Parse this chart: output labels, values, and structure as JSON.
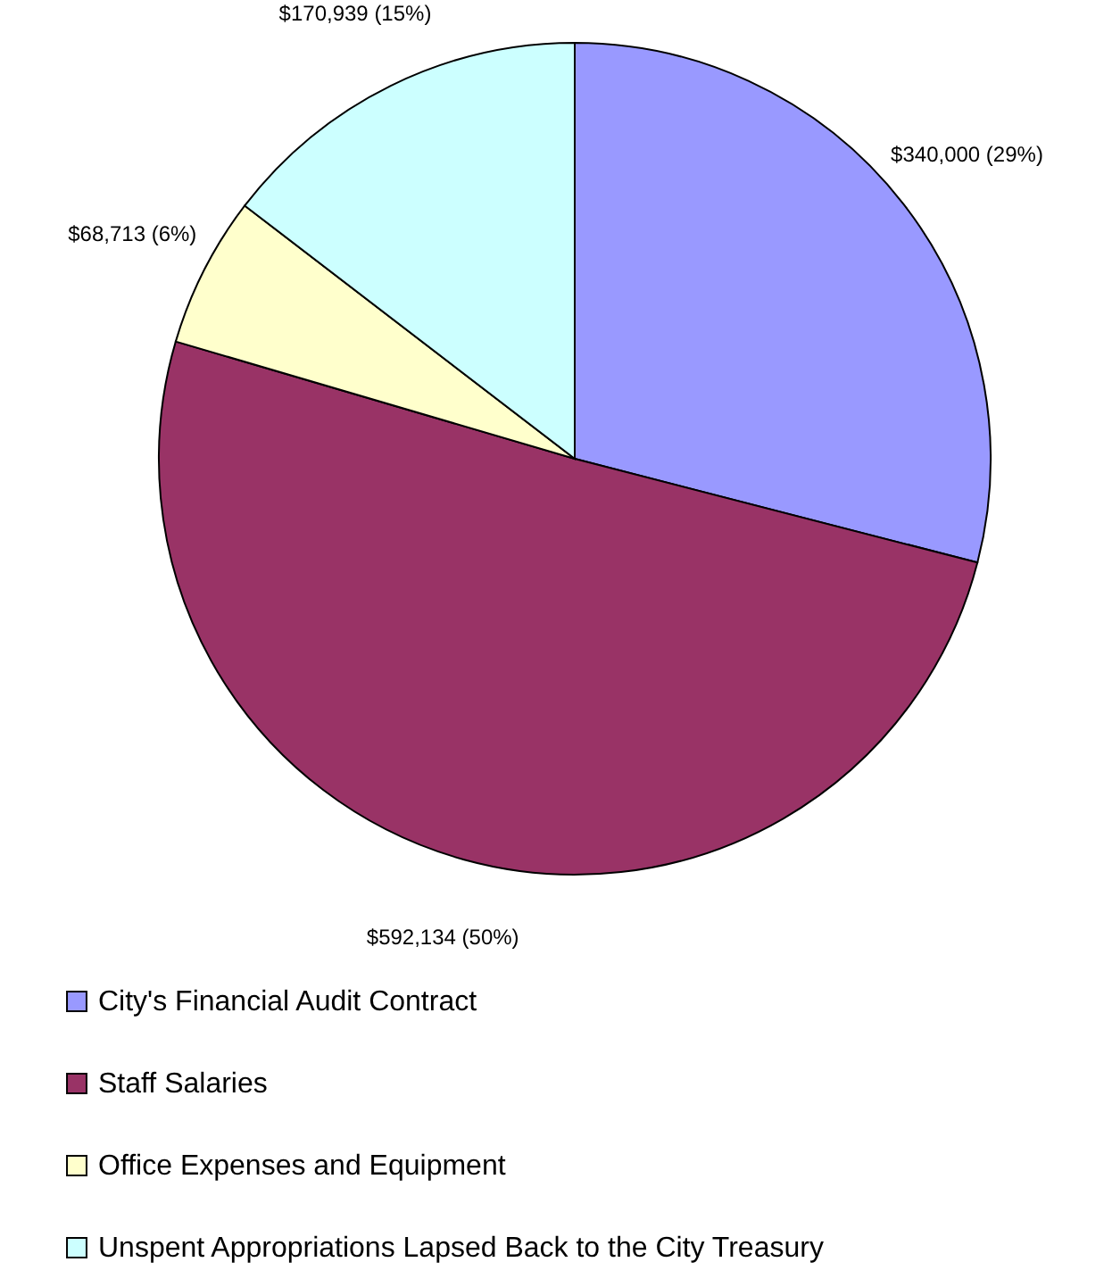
{
  "chart_data": {
    "type": "pie",
    "categories": [
      "City's Financial Audit Contract",
      "Staff Salaries",
      "Office Expenses and Equipment",
      "Unspent Appropriations Lapsed Back to the City Treasury"
    ],
    "values": [
      340000,
      592134,
      68713,
      170939
    ],
    "value_labels": [
      "$340,000 (29%)",
      "$592,134 (50%)",
      "$68,713 (6%)",
      "$170,939 (15%)"
    ],
    "colors": [
      "#9999ff",
      "#993366",
      "#ffffcc",
      "#ccffff"
    ],
    "legend": "bottom"
  }
}
